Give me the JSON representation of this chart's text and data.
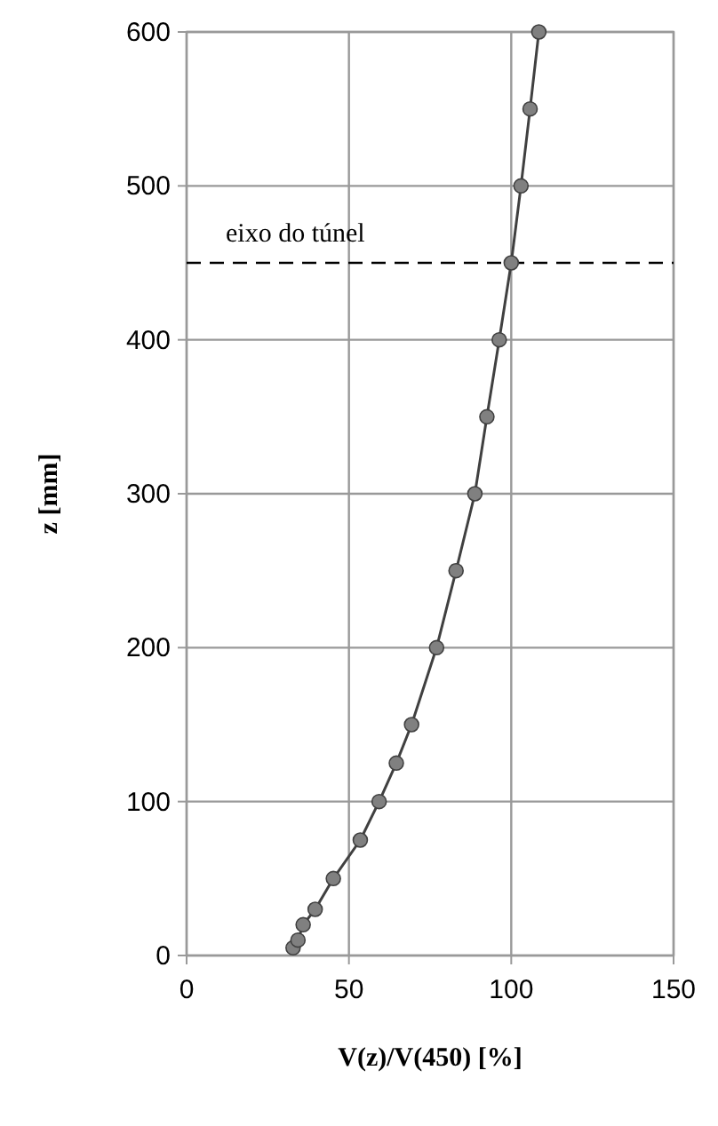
{
  "chart_data": {
    "type": "line",
    "xlabel": "V(z)/V(450) [%]",
    "ylabel": "z [mm]",
    "xlim": [
      0,
      150
    ],
    "xticks": [
      0,
      50,
      100,
      150
    ],
    "ylim": [
      0,
      600
    ],
    "yticks": [
      0,
      100,
      200,
      300,
      400,
      500,
      600
    ],
    "grid": true,
    "marker": "circle",
    "line_style": "solid",
    "series": [
      {
        "color": "#404040",
        "x": [
          32.8,
          34.3,
          35.9,
          39.6,
          45.2,
          53.5,
          59.3,
          64.6,
          69.3,
          77,
          83,
          88.8,
          92.5,
          96.3,
          100,
          103,
          105.8,
          108.5
        ],
        "values": [
          5,
          10,
          20,
          30,
          50,
          75,
          100,
          125,
          150,
          200,
          250,
          300,
          350,
          400,
          450,
          500,
          550,
          600
        ]
      }
    ],
    "ref_lines": [
      {
        "axis": "y",
        "value": 450,
        "label": "eixo do túnel",
        "color": "#000000",
        "line_style": "dashed"
      }
    ]
  }
}
